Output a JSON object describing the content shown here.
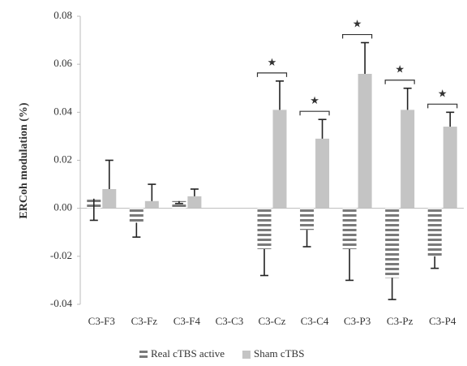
{
  "chart_data": {
    "type": "bar",
    "y_label": "ERCoh modulation (%)",
    "categories": [
      "C3-F3",
      "C3-Fz",
      "C3-F4",
      "C3-C3",
      "C3-Cz",
      "C3-C4",
      "C3-P3",
      "C3-Pz",
      "C3-P4"
    ],
    "series": [
      {
        "name": "Real cTBS active",
        "color": "#7a7a7a",
        "pattern": "horizontal-stripes",
        "error_direction": "down",
        "values": [
          0.004,
          -0.006,
          0.003,
          null,
          -0.017,
          -0.009,
          -0.017,
          -0.029,
          -0.02
        ],
        "errors": [
          0.009,
          0.006,
          0.001,
          null,
          0.011,
          0.007,
          0.013,
          0.009,
          0.005
        ]
      },
      {
        "name": "Sham cTBS",
        "color": "#c4c4c4",
        "pattern": "solid",
        "error_direction": "up",
        "values": [
          0.008,
          0.003,
          0.005,
          null,
          0.041,
          0.029,
          0.056,
          0.041,
          0.034
        ],
        "errors": [
          0.012,
          0.007,
          0.003,
          null,
          0.012,
          0.008,
          0.013,
          0.009,
          0.006
        ]
      }
    ],
    "significance": [
      null,
      null,
      null,
      null,
      "★",
      "★",
      "★",
      "★",
      "★"
    ],
    "ylim": [
      -0.04,
      0.08
    ],
    "yticks": [
      -0.04,
      -0.02,
      {
        "value": 0,
        "label": "0.00"
      },
      0.02,
      0.04,
      0.06,
      0.08
    ],
    "grid": false,
    "legend": "bottom"
  }
}
